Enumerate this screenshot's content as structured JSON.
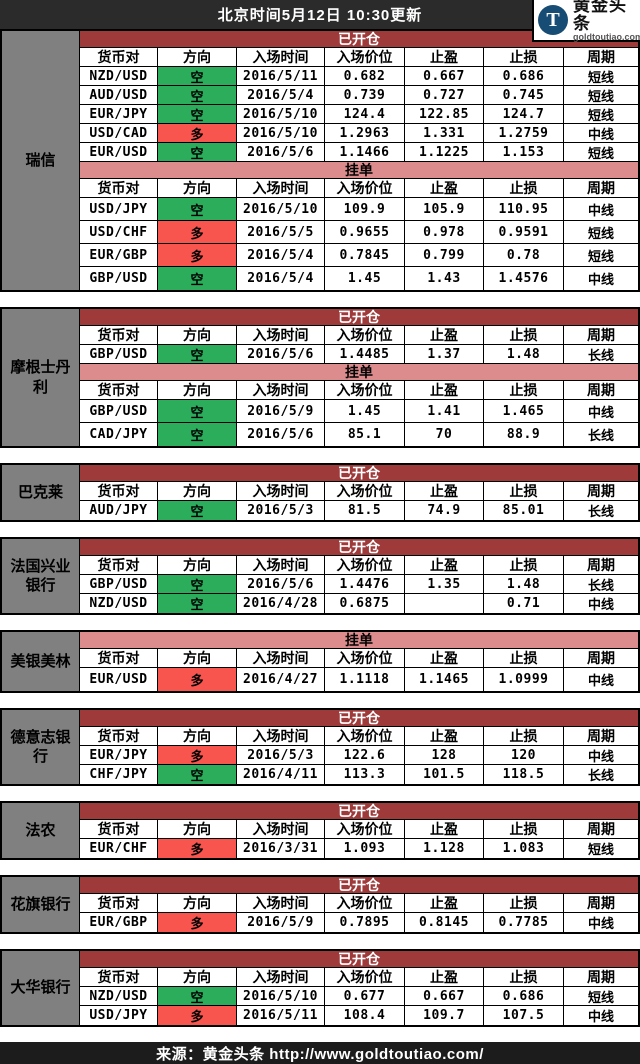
{
  "header": {
    "title": "北京时间5月12日 10:30更新"
  },
  "logo": {
    "t_glyph": "T",
    "name": "黄金头条",
    "domain": "goldtoutiao.com"
  },
  "columns": [
    "货币对",
    "方向",
    "入场时间",
    "入场价位",
    "止盈",
    "止损",
    "周期"
  ],
  "section_labels": {
    "open": "已开仓",
    "pending": "挂单"
  },
  "direction_legend": {
    "short": "空",
    "long": "多"
  },
  "colors": {
    "open_bar": "#9e3a3a",
    "pending_bar": "#dc8c8c",
    "short_green": "#2bad5c",
    "long_red": "#f8554f",
    "bank_column_gray": "#808080",
    "topbar": "#2b2b2b",
    "footer": "#1c1c1c",
    "logo_circle": "#174c74"
  },
  "banks": [
    {
      "name": "瑞信",
      "tables": [
        {
          "type": "open",
          "label": "已开仓",
          "rows": [
            [
              "NZD/USD",
              "空",
              "2016/5/11",
              "0.682",
              "0.667",
              "0.686",
              "短线"
            ],
            [
              "AUD/USD",
              "空",
              "2016/5/4",
              "0.739",
              "0.727",
              "0.745",
              "短线"
            ],
            [
              "EUR/JPY",
              "空",
              "2016/5/10",
              "124.4",
              "122.85",
              "124.7",
              "短线"
            ],
            [
              "USD/CAD",
              "多",
              "2016/5/10",
              "1.2963",
              "1.331",
              "1.2759",
              "中线"
            ],
            [
              "EUR/USD",
              "空",
              "2016/5/6",
              "1.1466",
              "1.1225",
              "1.153",
              "短线"
            ]
          ]
        },
        {
          "type": "pending",
          "label": "挂单",
          "rows": [
            [
              "USD/JPY",
              "空",
              "2016/5/10",
              "109.9",
              "105.9",
              "110.95",
              "中线"
            ],
            [
              "USD/CHF",
              "多",
              "2016/5/5",
              "0.9655",
              "0.978",
              "0.9591",
              "短线"
            ],
            [
              "EUR/GBP",
              "多",
              "2016/5/4",
              "0.7845",
              "0.799",
              "0.78",
              "短线"
            ],
            [
              "GBP/USD",
              "空",
              "2016/5/4",
              "1.45",
              "1.43",
              "1.4576",
              "中线"
            ]
          ]
        }
      ]
    },
    {
      "name": "摩根士丹利",
      "tables": [
        {
          "type": "open",
          "label": "已开仓",
          "rows": [
            [
              "GBP/USD",
              "空",
              "2016/5/6",
              "1.4485",
              "1.37",
              "1.48",
              "长线"
            ]
          ]
        },
        {
          "type": "pending",
          "label": "挂单",
          "rows": [
            [
              "GBP/USD",
              "空",
              "2016/5/9",
              "1.45",
              "1.41",
              "1.465",
              "中线"
            ],
            [
              "CAD/JPY",
              "空",
              "2016/5/6",
              "85.1",
              "70",
              "88.9",
              "长线"
            ]
          ]
        }
      ]
    },
    {
      "name": "巴克莱",
      "tables": [
        {
          "type": "open",
          "label": "已开仓",
          "rows": [
            [
              "AUD/JPY",
              "空",
              "2016/5/3",
              "81.5",
              "74.9",
              "85.01",
              "长线"
            ]
          ]
        }
      ]
    },
    {
      "name": "法国兴业银行",
      "tables": [
        {
          "type": "open",
          "label": "已开仓",
          "rows": [
            [
              "GBP/USD",
              "空",
              "2016/5/6",
              "1.4476",
              "1.35",
              "1.48",
              "长线"
            ],
            [
              "NZD/USD",
              "空",
              "2016/4/28",
              "0.6875",
              "",
              "0.71",
              "中线"
            ]
          ]
        }
      ]
    },
    {
      "name": "美银美林",
      "tables": [
        {
          "type": "pending",
          "label": "挂单",
          "rows": [
            [
              "EUR/USD",
              "多",
              "2016/4/27",
              "1.1118",
              "1.1465",
              "1.0999",
              "中线"
            ]
          ]
        }
      ]
    },
    {
      "name": "德意志银行",
      "tables": [
        {
          "type": "open",
          "label": "已开仓",
          "rows": [
            [
              "EUR/JPY",
              "多",
              "2016/5/3",
              "122.6",
              "128",
              "120",
              "中线"
            ],
            [
              "CHF/JPY",
              "空",
              "2016/4/11",
              "113.3",
              "101.5",
              "118.5",
              "长线"
            ]
          ]
        }
      ]
    },
    {
      "name": "法农",
      "tables": [
        {
          "type": "open",
          "label": "已开仓",
          "rows": [
            [
              "EUR/CHF",
              "多",
              "2016/3/31",
              "1.093",
              "1.128",
              "1.083",
              "短线"
            ]
          ]
        }
      ]
    },
    {
      "name": "花旗银行",
      "tables": [
        {
          "type": "open",
          "label": "已开仓",
          "rows": [
            [
              "EUR/GBP",
              "多",
              "2016/5/9",
              "0.7895",
              "0.8145",
              "0.7785",
              "中线"
            ]
          ]
        }
      ]
    },
    {
      "name": "大华银行",
      "tables": [
        {
          "type": "open",
          "label": "已开仓",
          "rows": [
            [
              "NZD/USD",
              "空",
              "2016/5/10",
              "0.677",
              "0.667",
              "0.686",
              "短线"
            ],
            [
              "USD/JPY",
              "多",
              "2016/5/11",
              "108.4",
              "109.7",
              "107.5",
              "中线"
            ]
          ]
        }
      ]
    }
  ],
  "footer": {
    "text": "来源：黄金头条 http://www.goldtoutiao.com/"
  }
}
